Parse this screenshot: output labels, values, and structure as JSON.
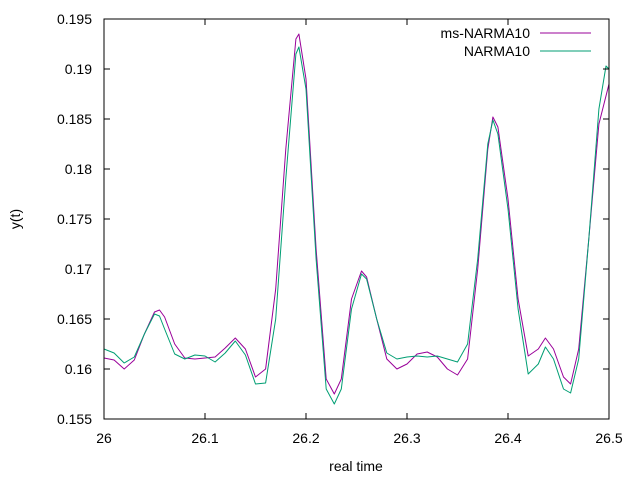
{
  "chart_data": {
    "type": "line",
    "title": "",
    "xlabel": "real time",
    "ylabel": "y(t)",
    "xlim": [
      26,
      26.5
    ],
    "ylim": [
      0.155,
      0.195
    ],
    "x_ticks": [
      "26",
      "26.1",
      "26.2",
      "26.3",
      "26.4",
      "26.5"
    ],
    "y_ticks": [
      "0.155",
      "0.16",
      "0.165",
      "0.17",
      "0.175",
      "0.18",
      "0.185",
      "0.19",
      "0.195"
    ],
    "grid": false,
    "legend_position": "top-right",
    "series": [
      {
        "name": "ms-NARMA10",
        "color": "#990099",
        "points": [
          [
            26.0,
            0.1611
          ],
          [
            26.01,
            0.1609
          ],
          [
            26.02,
            0.16
          ],
          [
            26.03,
            0.1609
          ],
          [
            26.04,
            0.1635
          ],
          [
            26.05,
            0.1657
          ],
          [
            26.055,
            0.1659
          ],
          [
            26.06,
            0.1652
          ],
          [
            26.07,
            0.1625
          ],
          [
            26.08,
            0.1611
          ],
          [
            26.09,
            0.161
          ],
          [
            26.1,
            0.1611
          ],
          [
            26.11,
            0.1612
          ],
          [
            26.12,
            0.1621
          ],
          [
            26.13,
            0.1631
          ],
          [
            26.14,
            0.162
          ],
          [
            26.15,
            0.1592
          ],
          [
            26.16,
            0.16
          ],
          [
            26.17,
            0.168
          ],
          [
            26.18,
            0.182
          ],
          [
            26.19,
            0.193
          ],
          [
            26.193,
            0.1935
          ],
          [
            26.2,
            0.189
          ],
          [
            26.21,
            0.172
          ],
          [
            26.22,
            0.159
          ],
          [
            26.228,
            0.1575
          ],
          [
            26.235,
            0.159
          ],
          [
            26.245,
            0.167
          ],
          [
            26.255,
            0.1698
          ],
          [
            26.26,
            0.1692
          ],
          [
            26.27,
            0.165
          ],
          [
            26.28,
            0.161
          ],
          [
            26.29,
            0.16
          ],
          [
            26.3,
            0.1605
          ],
          [
            26.31,
            0.1615
          ],
          [
            26.32,
            0.1617
          ],
          [
            26.33,
            0.1612
          ],
          [
            26.34,
            0.16
          ],
          [
            26.35,
            0.1594
          ],
          [
            26.36,
            0.161
          ],
          [
            26.37,
            0.17
          ],
          [
            26.38,
            0.182
          ],
          [
            26.385,
            0.1852
          ],
          [
            26.39,
            0.1842
          ],
          [
            26.4,
            0.177
          ],
          [
            26.41,
            0.167
          ],
          [
            26.42,
            0.1613
          ],
          [
            26.43,
            0.162
          ],
          [
            26.437,
            0.1631
          ],
          [
            26.445,
            0.162
          ],
          [
            26.455,
            0.1592
          ],
          [
            26.462,
            0.1585
          ],
          [
            26.47,
            0.162
          ],
          [
            26.48,
            0.173
          ],
          [
            26.49,
            0.1845
          ],
          [
            26.5,
            0.1885
          ]
        ]
      },
      {
        "name": "NARMA10",
        "color": "#009e73",
        "points": [
          [
            26.0,
            0.162
          ],
          [
            26.01,
            0.1616
          ],
          [
            26.02,
            0.1606
          ],
          [
            26.03,
            0.1612
          ],
          [
            26.04,
            0.1635
          ],
          [
            26.05,
            0.1655
          ],
          [
            26.055,
            0.1653
          ],
          [
            26.06,
            0.164
          ],
          [
            26.07,
            0.1615
          ],
          [
            26.08,
            0.161
          ],
          [
            26.09,
            0.1614
          ],
          [
            26.1,
            0.1613
          ],
          [
            26.11,
            0.1607
          ],
          [
            26.12,
            0.1616
          ],
          [
            26.13,
            0.1628
          ],
          [
            26.14,
            0.1614
          ],
          [
            26.15,
            0.1585
          ],
          [
            26.16,
            0.1586
          ],
          [
            26.17,
            0.165
          ],
          [
            26.18,
            0.179
          ],
          [
            26.19,
            0.1915
          ],
          [
            26.193,
            0.1922
          ],
          [
            26.2,
            0.188
          ],
          [
            26.21,
            0.171
          ],
          [
            26.22,
            0.158
          ],
          [
            26.228,
            0.1565
          ],
          [
            26.235,
            0.158
          ],
          [
            26.245,
            0.166
          ],
          [
            26.255,
            0.1695
          ],
          [
            26.26,
            0.169
          ],
          [
            26.27,
            0.165
          ],
          [
            26.28,
            0.1616
          ],
          [
            26.29,
            0.161
          ],
          [
            26.3,
            0.1612
          ],
          [
            26.31,
            0.1613
          ],
          [
            26.32,
            0.1612
          ],
          [
            26.33,
            0.1613
          ],
          [
            26.34,
            0.161
          ],
          [
            26.35,
            0.1607
          ],
          [
            26.36,
            0.1625
          ],
          [
            26.37,
            0.171
          ],
          [
            26.38,
            0.1825
          ],
          [
            26.385,
            0.1849
          ],
          [
            26.39,
            0.1835
          ],
          [
            26.4,
            0.176
          ],
          [
            26.41,
            0.166
          ],
          [
            26.42,
            0.1595
          ],
          [
            26.43,
            0.1605
          ],
          [
            26.437,
            0.1622
          ],
          [
            26.445,
            0.161
          ],
          [
            26.455,
            0.158
          ],
          [
            26.462,
            0.1576
          ],
          [
            26.47,
            0.161
          ],
          [
            26.48,
            0.173
          ],
          [
            26.49,
            0.186
          ],
          [
            26.497,
            0.1903
          ],
          [
            26.5,
            0.19
          ]
        ]
      }
    ]
  }
}
